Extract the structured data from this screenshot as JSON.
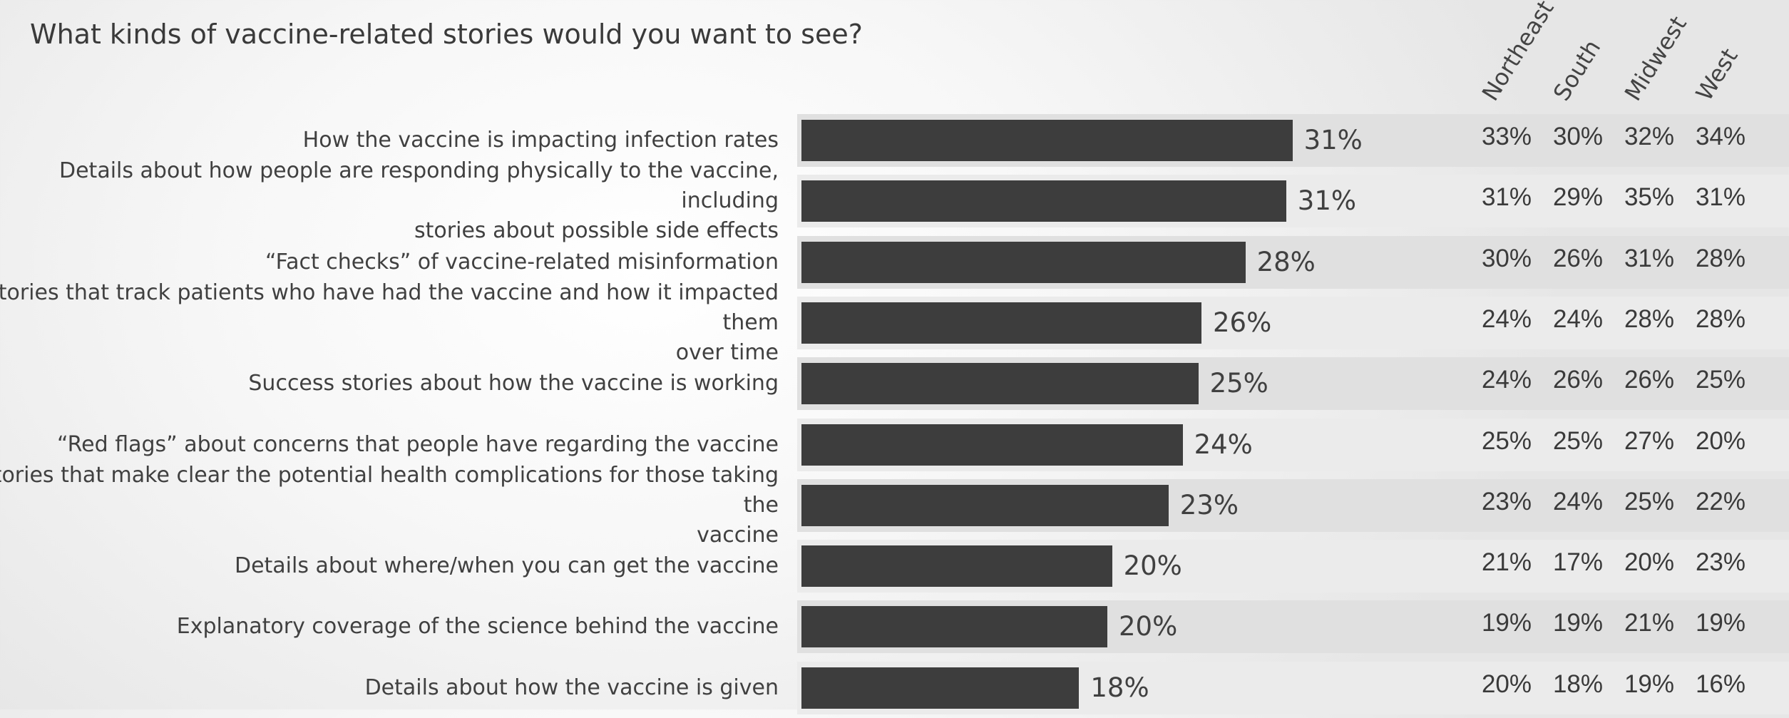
{
  "chart_data": {
    "type": "bar",
    "orientation": "horizontal",
    "title": "What kinds of vaccine-related stories would you want to see?",
    "categories": [
      "How the vaccine is impacting infection rates",
      "Details about how people are responding physically to the vaccine, including stories about possible side effects",
      "“Fact checks” of vaccine-related misinformation",
      "Stories that track patients who have had the vaccine and how it impacted them over time",
      "Success stories about how the vaccine is working",
      "“Red flags” about concerns that people have regarding the vaccine",
      "Stories that make clear the potential health complications for those taking the vaccine",
      "Details about where/when you can get the vaccine",
      "Explanatory coverage of the science behind the vaccine",
      "Details about how the vaccine is given"
    ],
    "category_lines": [
      [
        "How the vaccine is impacting infection rates"
      ],
      [
        "Details about how people are responding physically to the vaccine, including",
        "stories about possible side effects"
      ],
      [
        "“Fact checks” of vaccine-related misinformation"
      ],
      [
        "Stories that track patients who have had the vaccine and how it impacted them",
        "over time"
      ],
      [
        "Success stories about how the vaccine is working"
      ],
      [
        "“Red flags” about concerns that people have regarding the vaccine"
      ],
      [
        "Stories that make clear the potential health complications for those taking the",
        "vaccine"
      ],
      [
        "Details about where/when you can get the vaccine"
      ],
      [
        "Explanatory coverage of the science behind the vaccine"
      ],
      [
        "Details about how the vaccine is given"
      ]
    ],
    "values": [
      31.3,
      30.9,
      28.3,
      25.5,
      25.3,
      24.3,
      23.4,
      19.8,
      19.5,
      17.7
    ],
    "value_labels": [
      "31%",
      "31%",
      "28%",
      "26%",
      "25%",
      "24%",
      "23%",
      "20%",
      "20%",
      "18%"
    ],
    "xlim": [
      0,
      50
    ],
    "bar_color": "#3d3d3d",
    "band_colors": [
      "#e0e0e0",
      "#ebebeb"
    ],
    "regions": [
      "Northeast",
      "South",
      "Midwest",
      "West"
    ],
    "region_values": [
      [
        "33%",
        "30%",
        "32%",
        "34%"
      ],
      [
        "31%",
        "29%",
        "35%",
        "31%"
      ],
      [
        "30%",
        "26%",
        "31%",
        "28%"
      ],
      [
        "24%",
        "24%",
        "28%",
        "28%"
      ],
      [
        "24%",
        "26%",
        "26%",
        "25%"
      ],
      [
        "25%",
        "25%",
        "27%",
        "20%"
      ],
      [
        "23%",
        "24%",
        "25%",
        "22%"
      ],
      [
        "21%",
        "17%",
        "20%",
        "23%"
      ],
      [
        "19%",
        "19%",
        "21%",
        "19%"
      ],
      [
        "20%",
        "18%",
        "19%",
        "16%"
      ]
    ]
  }
}
